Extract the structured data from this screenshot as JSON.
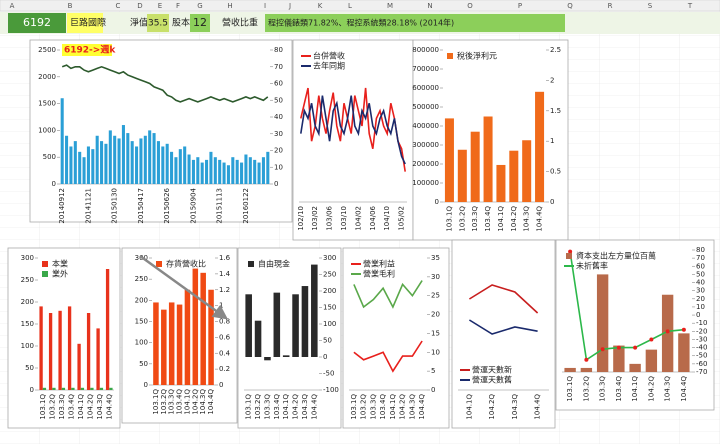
{
  "sheet": {
    "columns": [
      "A",
      "B",
      "C",
      "D",
      "E",
      "F",
      "G",
      "H",
      "I",
      "J",
      "K",
      "L",
      "M",
      "N",
      "O",
      "P",
      "Q",
      "R",
      "S",
      "T"
    ]
  },
  "header": {
    "code": "6192",
    "name": "巨路國際",
    "nav_label": "淨值",
    "nav": "35.5",
    "capital_label": "股本",
    "capital": "12",
    "revenue_mix_label": "營收比重",
    "revenue_mix": "程控儀錶類71.82%、程控系統類28.18% (2014年)"
  },
  "chart_data": [
    {
      "type": "combo",
      "annotation": "6192->週k",
      "categories": [
        "20140912",
        null,
        null,
        null,
        null,
        null,
        "20141121",
        null,
        null,
        null,
        null,
        null,
        "20150130",
        null,
        null,
        null,
        null,
        null,
        "20150417",
        null,
        null,
        null,
        null,
        null,
        "20150626",
        null,
        null,
        null,
        null,
        null,
        "20150904",
        null,
        null,
        null,
        null,
        null,
        "20151113",
        null,
        null,
        null,
        null,
        null,
        "20160122",
        null,
        null,
        null,
        null,
        null
      ],
      "ylim": [
        0,
        2500
      ],
      "yticks": [
        0,
        500,
        1000,
        1500,
        2000,
        2500
      ],
      "y2lim": [
        0,
        80
      ],
      "y2ticks": [
        0,
        10,
        20,
        30,
        40,
        50,
        60,
        70,
        80
      ],
      "series": [
        {
          "kind": "bar",
          "color": "#2a9fd6",
          "values": [
            1600,
            900,
            700,
            800,
            600,
            500,
            700,
            650,
            900,
            800,
            750,
            1000,
            900,
            850,
            1100,
            950,
            800,
            700,
            850,
            900,
            1000,
            950,
            800,
            700,
            750,
            600,
            500,
            650,
            700,
            550,
            450,
            500,
            400,
            450,
            600,
            500,
            450,
            400,
            350,
            500,
            450,
            400,
            550,
            500,
            450,
            400,
            500,
            600
          ]
        },
        {
          "kind": "line",
          "axis": "y2",
          "color": "#2d5a2d",
          "values": [
            70,
            71,
            69,
            70,
            70,
            68,
            67,
            68,
            69,
            70,
            69,
            68,
            67,
            66,
            67,
            65,
            64,
            63,
            62,
            61,
            60,
            58,
            57,
            56,
            53,
            52,
            50,
            49,
            50,
            51,
            50,
            49,
            50,
            51,
            52,
            51,
            50,
            51,
            50,
            49,
            50,
            51,
            52,
            51,
            52,
            51,
            50,
            52
          ]
        }
      ]
    },
    {
      "type": "line",
      "legend": "upper left",
      "categories": [
        "102/10",
        null,
        null,
        null,
        "103/02",
        null,
        null,
        null,
        "103/06",
        null,
        null,
        null,
        "103/10",
        null,
        null,
        null,
        "104/02",
        null,
        null,
        null,
        "104/06",
        null,
        null,
        null,
        "104/10",
        null,
        null,
        null,
        "105/02",
        null
      ],
      "ylim": [
        0,
        100
      ],
      "series": [
        {
          "name": "台併營收",
          "color": "#e8201c",
          "values": [
            55,
            65,
            75,
            40,
            50,
            70,
            55,
            45,
            60,
            72,
            50,
            40,
            65,
            55,
            45,
            70,
            60,
            50,
            75,
            45,
            35,
            55,
            60,
            50,
            45,
            65,
            55,
            40,
            35,
            20
          ]
        },
        {
          "name": "去年同期",
          "color": "#1a2a6c",
          "values": [
            45,
            60,
            55,
            65,
            50,
            45,
            70,
            55,
            40,
            60,
            65,
            50,
            45,
            55,
            70,
            50,
            45,
            60,
            55,
            65,
            50,
            45,
            55,
            60,
            50,
            45,
            55,
            40,
            30,
            25
          ]
        }
      ]
    },
    {
      "type": "bar",
      "legend": "upper left",
      "categories": [
        "103.1Q",
        "103.2Q",
        "103.3Q",
        "103.4Q",
        "104.1Q",
        "104.2Q",
        "104.3Q",
        "104.4Q"
      ],
      "ylim": [
        0,
        800000
      ],
      "yticks": [
        0,
        100000,
        200000,
        300000,
        400000,
        500000,
        600000,
        700000,
        800000
      ],
      "y2lim": [
        0,
        2.5
      ],
      "y2ticks": [
        0,
        0.5,
        1,
        1.5,
        2,
        2.5
      ],
      "series": [
        {
          "name": "稅後淨利元",
          "color": "#f06a1a",
          "values": [
            440000,
            275000,
            370000,
            450000,
            195000,
            270000,
            325000,
            580000
          ]
        }
      ]
    },
    {
      "type": "bar",
      "legend": "upper left",
      "categories": [
        "103.1Q",
        "103.2Q",
        "103.3Q",
        "103.4Q",
        "104.1Q",
        "104.2Q",
        "104.3Q",
        "104.4Q"
      ],
      "ylim": [
        0,
        300
      ],
      "yticks": [
        0,
        50,
        100,
        150,
        200,
        250,
        300
      ],
      "series": [
        {
          "name": "本業",
          "color": "#e8321c",
          "values": [
            190,
            175,
            180,
            190,
            105,
            175,
            140,
            275
          ]
        },
        {
          "name": "業外",
          "color": "#3aa84a",
          "values": [
            5,
            5,
            5,
            5,
            5,
            5,
            5,
            5
          ]
        }
      ]
    },
    {
      "type": "bar",
      "legend": "upper left",
      "categories": [
        "103.1Q",
        "103.2Q",
        "103.3Q",
        "103.4Q",
        "104.1Q",
        "104.2Q",
        "104.3Q",
        "104.4Q"
      ],
      "ylim": [
        0,
        300
      ],
      "yticks": [
        0,
        50,
        100,
        150,
        200,
        250,
        300
      ],
      "y2lim": [
        0,
        1.6
      ],
      "y2ticks": [
        0,
        0.2,
        0.4,
        0.6,
        0.8,
        1,
        1.2,
        1.4,
        1.6
      ],
      "series": [
        {
          "name": "存貨營收比",
          "color": "#f04a14",
          "values": [
            195,
            178,
            195,
            190,
            225,
            275,
            265,
            225
          ]
        }
      ]
    },
    {
      "type": "bar",
      "legend": "upper left",
      "categories": [
        "103.1Q",
        "103.2Q",
        "103.3Q",
        "103.4Q",
        "104.1Q",
        "104.2Q",
        "104.3Q",
        "104.4Q"
      ],
      "y2lim": [
        -100,
        300
      ],
      "y2ticks": [
        -100,
        -50,
        0,
        50,
        100,
        150,
        200,
        250,
        300
      ],
      "series": [
        {
          "name": "自由現金",
          "axis": "y2",
          "color": "#2a2a2a",
          "values": [
            190,
            110,
            -10,
            195,
            5,
            190,
            215,
            280
          ]
        }
      ]
    },
    {
      "type": "line",
      "legend": "upper left",
      "categories": [
        "103.1Q",
        "103.2Q",
        "103.3Q",
        "103.4Q",
        "104.1Q",
        "104.2Q",
        "104.3Q",
        "104.4Q"
      ],
      "y2lim": [
        0,
        35
      ],
      "y2ticks": [
        0,
        5,
        10,
        15,
        20,
        25,
        30,
        35
      ],
      "series": [
        {
          "name": "營業利益",
          "axis": "y2",
          "color": "#e8201c",
          "values": [
            10,
            8,
            9,
            10,
            5,
            9,
            9,
            13
          ]
        },
        {
          "name": "營業毛利",
          "axis": "y2",
          "color": "#5aa84a",
          "values": [
            28,
            22,
            24,
            27,
            22,
            28,
            25,
            29
          ]
        }
      ]
    },
    {
      "type": "line",
      "legend": "lower left",
      "categories": [
        "104.1Q",
        "104.2Q",
        "104.3Q",
        "104.4Q"
      ],
      "ylim": [
        0,
        100
      ],
      "series": [
        {
          "name": "營運天數新",
          "color": "#c81e1e",
          "values": [
            65,
            75,
            70,
            55
          ]
        },
        {
          "name": "營運天數舊",
          "color": "#1a2a6c",
          "values": [
            50,
            40,
            45,
            42
          ]
        }
      ]
    },
    {
      "type": "combo",
      "legend": "upper left",
      "markers": true,
      "categories": [
        "103.1Q",
        "103.2Q",
        "103.3Q",
        "103.4Q",
        "104.1Q",
        "104.2Q",
        "104.3Q",
        "104.4Q"
      ],
      "ylim": [
        0,
        300
      ],
      "y2lim": [
        -70,
        80
      ],
      "y2ticks": [
        -70,
        -60,
        -50,
        -40,
        -30,
        -20,
        -10,
        0,
        10,
        20,
        30,
        40,
        50,
        60,
        70,
        80
      ],
      "series": [
        {
          "name": "資本支出左方量位百萬",
          "kind": "bar",
          "color": "#b86a4a",
          "values": [
            10,
            10,
            240,
            65,
            20,
            55,
            190,
            95
          ]
        },
        {
          "name": "未折舊率",
          "kind": "line",
          "axis": "y2",
          "color": "#2cb84a",
          "values": [
            78,
            -55,
            -42,
            -40,
            -40,
            -30,
            -20,
            -18
          ]
        }
      ]
    }
  ]
}
